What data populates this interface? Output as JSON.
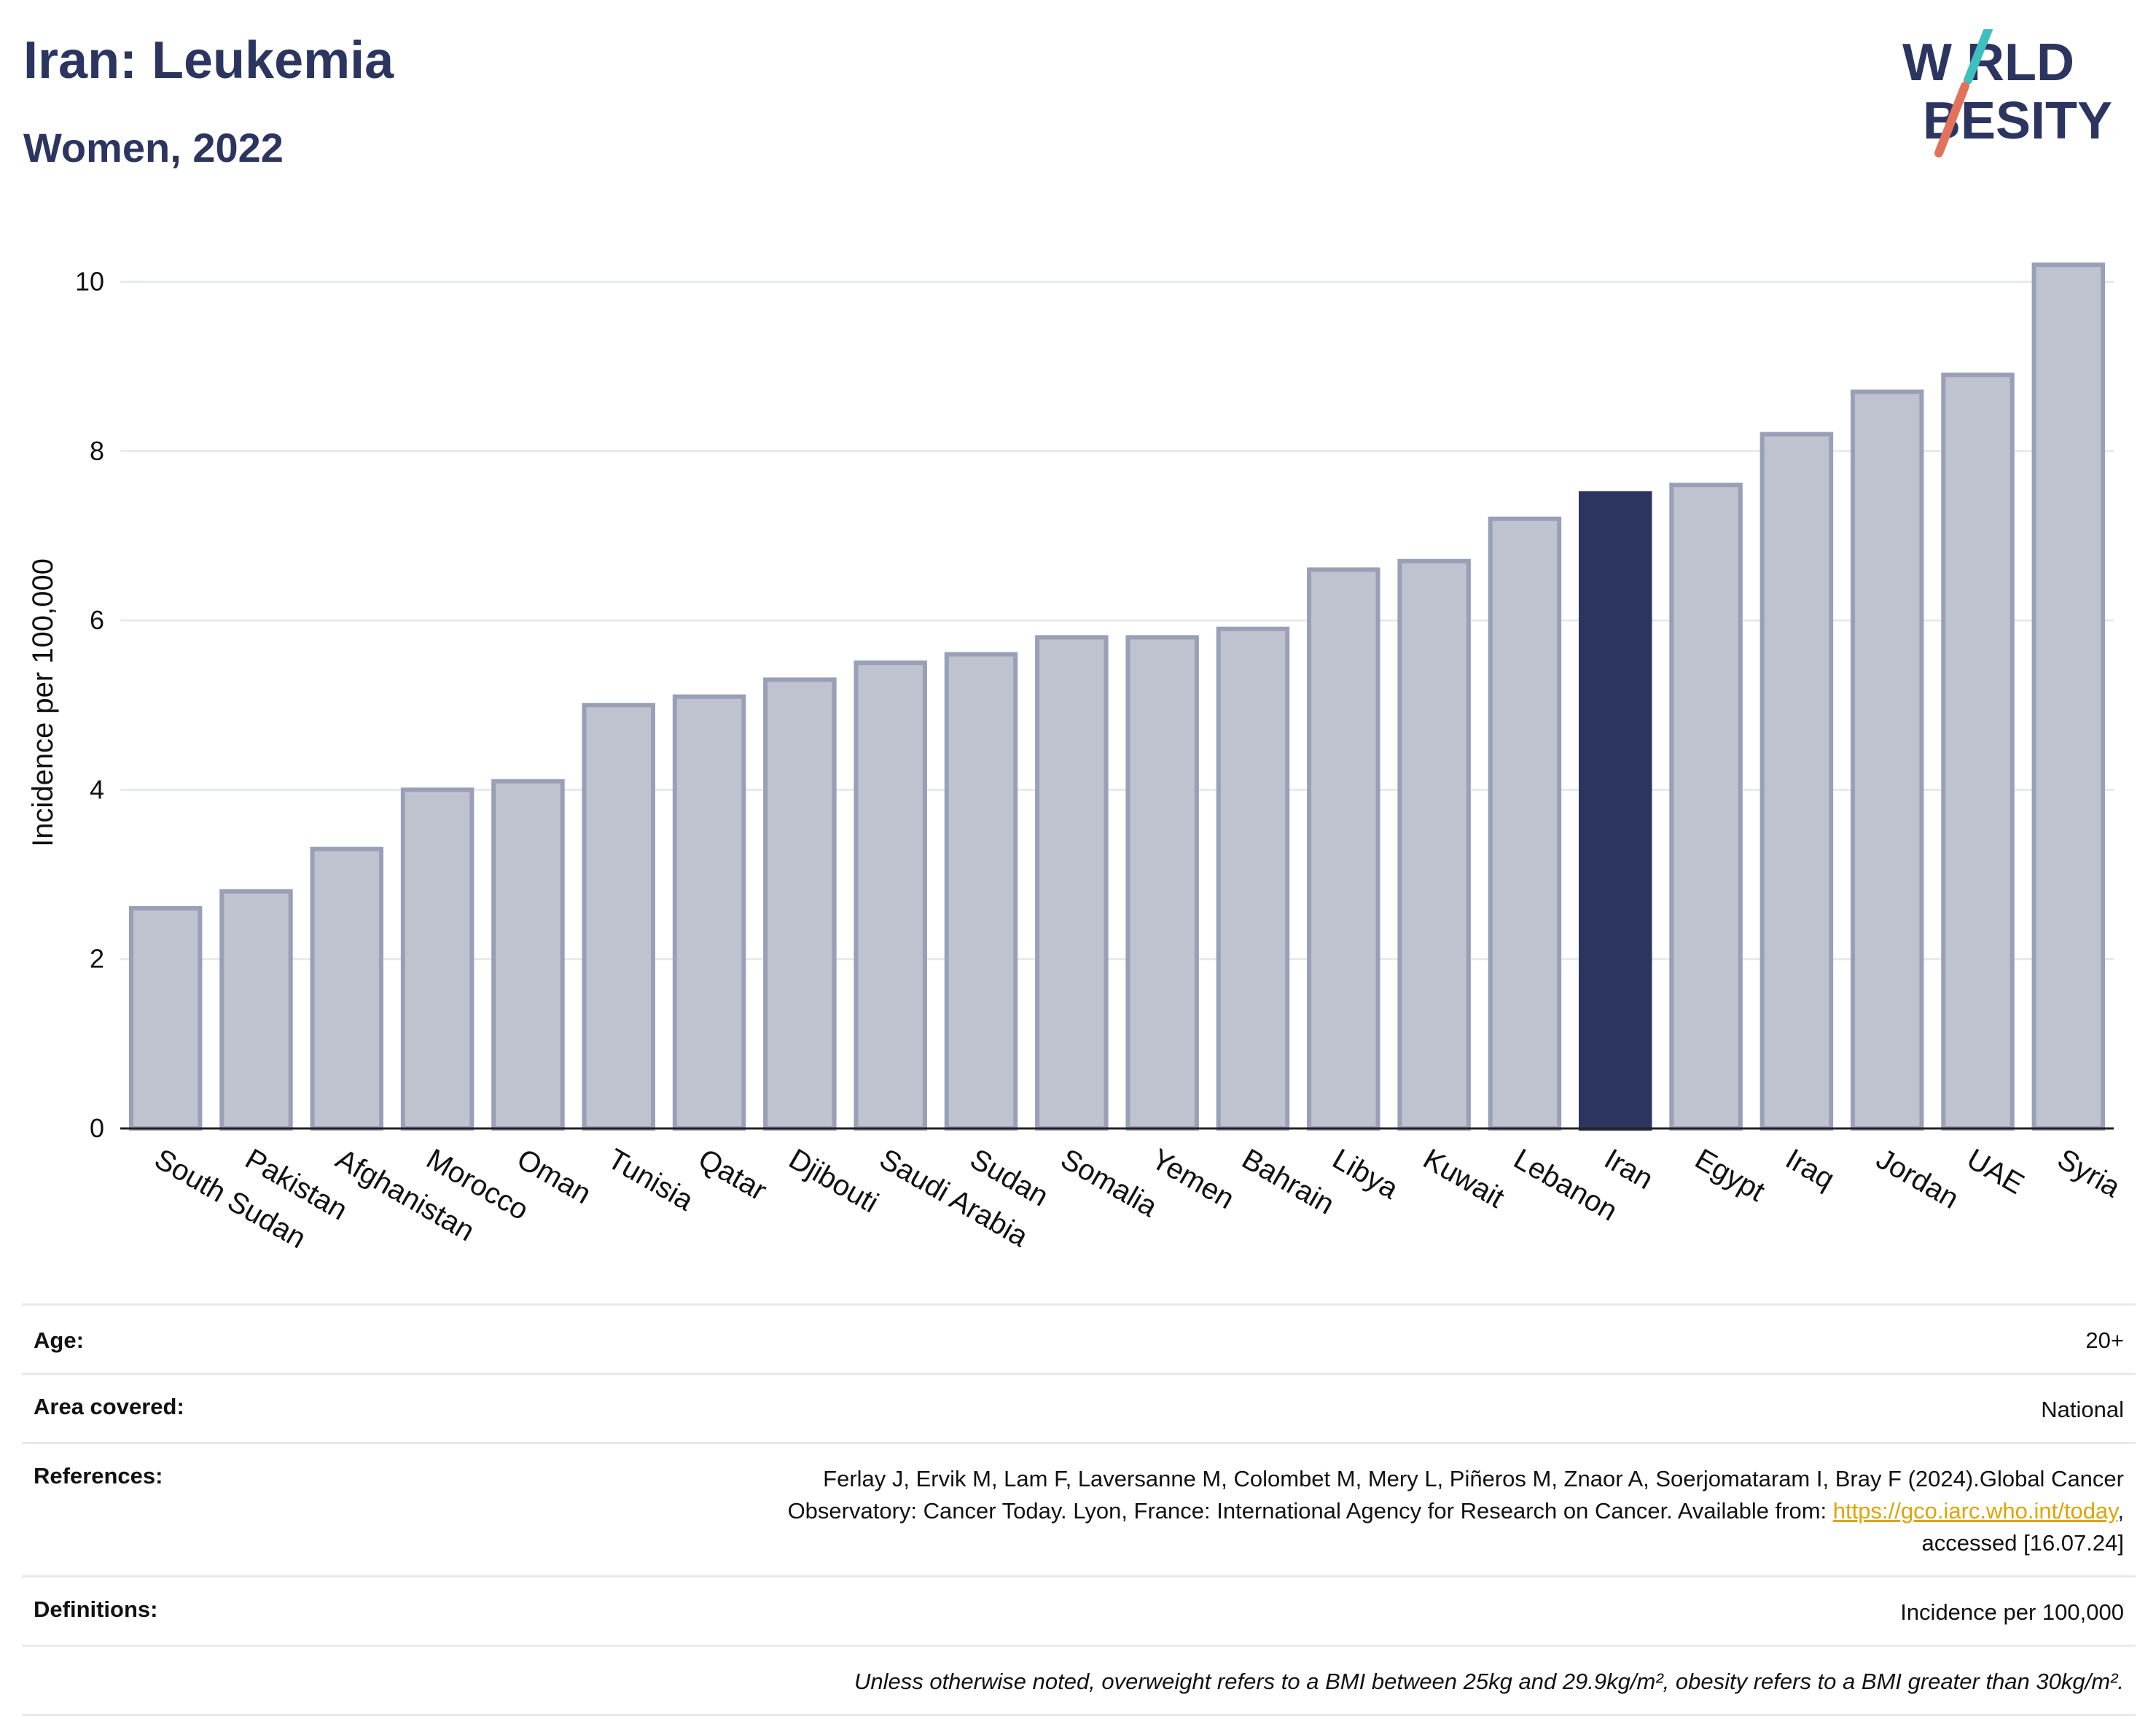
{
  "header": {
    "title": "Iran: Leukemia",
    "subtitle": "Women, 2022"
  },
  "logo": {
    "line1": "W RLD",
    "line2": "BESITY",
    "colors": {
      "navy": "#2b3560",
      "teal": "#3fbfbf",
      "coral": "#e2725b"
    }
  },
  "chart_data": {
    "type": "bar",
    "ylabel": "Incidence per 100,000",
    "ylim": [
      0,
      10.4
    ],
    "yticks": [
      0,
      2,
      4,
      6,
      8,
      10
    ],
    "grid": true,
    "highlight": "Iran",
    "colors": {
      "bar": "#bfc2cf",
      "bar_edge": "#9a9fb8",
      "highlight": "#2b3560"
    },
    "categories": [
      "South Sudan",
      "Pakistan",
      "Afghanistan",
      "Morocco",
      "Oman",
      "Tunisia",
      "Qatar",
      "Djibouti",
      "Saudi Arabia",
      "Sudan",
      "Somalia",
      "Yemen",
      "Bahrain",
      "Libya",
      "Kuwait",
      "Lebanon",
      "Iran",
      "Egypt",
      "Iraq",
      "Jordan",
      "UAE",
      "Syria"
    ],
    "values": [
      2.6,
      2.8,
      3.3,
      4.0,
      4.1,
      5.0,
      5.1,
      5.3,
      5.5,
      5.6,
      5.8,
      5.8,
      5.9,
      6.6,
      6.7,
      7.2,
      7.5,
      7.6,
      8.2,
      8.7,
      8.9,
      10.2
    ]
  },
  "info": {
    "age_label": "Age:",
    "age_value": "20+",
    "area_label": "Area covered:",
    "area_value": "National",
    "references_label": "References:",
    "references_line1": "Ferlay J, Ervik M, Lam F, Laversanne M, Colombet M, Mery L, Piñeros M, Znaor A, Soerjomataram I, Bray F (2024).Global Cancer",
    "references_line2_pre": "Observatory: Cancer Today. Lyon, France: International Agency for Research on Cancer. Available from: ",
    "references_link": "https://gco.iarc.who.int/today",
    "references_line2_post": ",",
    "references_line3": "accessed [16.07.24]",
    "definitions_label": "Definitions:",
    "definitions_value": "Incidence per 100,000",
    "note": "Unless otherwise noted, overweight refers to a BMI between 25kg and 29.9kg/m², obesity refers to a BMI greater than 30kg/m²."
  }
}
